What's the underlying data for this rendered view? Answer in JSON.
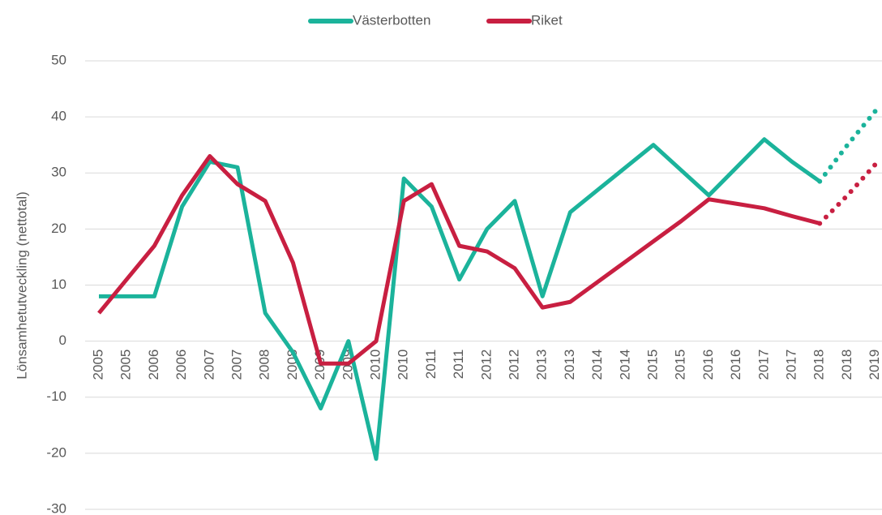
{
  "chart_data": {
    "type": "line",
    "y_label": "Lönsamhetutveckling (nettotal)",
    "categories": [
      "2005",
      "2005",
      "2006",
      "2006",
      "2007",
      "2007",
      "2008",
      "2008",
      "2009",
      "2009",
      "2010",
      "2010",
      "2011",
      "2011",
      "2012",
      "2012",
      "2013",
      "2013",
      "2014",
      "2014",
      "2015",
      "2015",
      "2016",
      "2016",
      "2017",
      "2017",
      "2018",
      "2018",
      "2019"
    ],
    "series": [
      {
        "name": "Västerbotten",
        "color": "#1bb39b",
        "projection_start": 26,
        "values": [
          8,
          8,
          8,
          24,
          32,
          31,
          5,
          -2,
          -12,
          0,
          -21,
          29,
          24,
          11,
          20,
          25,
          8,
          23,
          27,
          31,
          35,
          30.5,
          26,
          31,
          36,
          32,
          28.5,
          35,
          41
        ]
      },
      {
        "name": "Riket",
        "color": "#c81f41",
        "projection_start": 26,
        "values": [
          5,
          11,
          17,
          26,
          33,
          28,
          25,
          14,
          -4,
          -4,
          0,
          25,
          28,
          17,
          16,
          13,
          6,
          7,
          10.6,
          14.2,
          17.8,
          21.4,
          25.3,
          24.5,
          23.7,
          22.3,
          21,
          26,
          31.5
        ]
      }
    ],
    "ylim": [
      -30,
      50
    ],
    "yticks": [
      -30,
      -20,
      -10,
      0,
      10,
      20,
      30,
      40,
      50
    ],
    "grid": true,
    "legend": "top"
  }
}
